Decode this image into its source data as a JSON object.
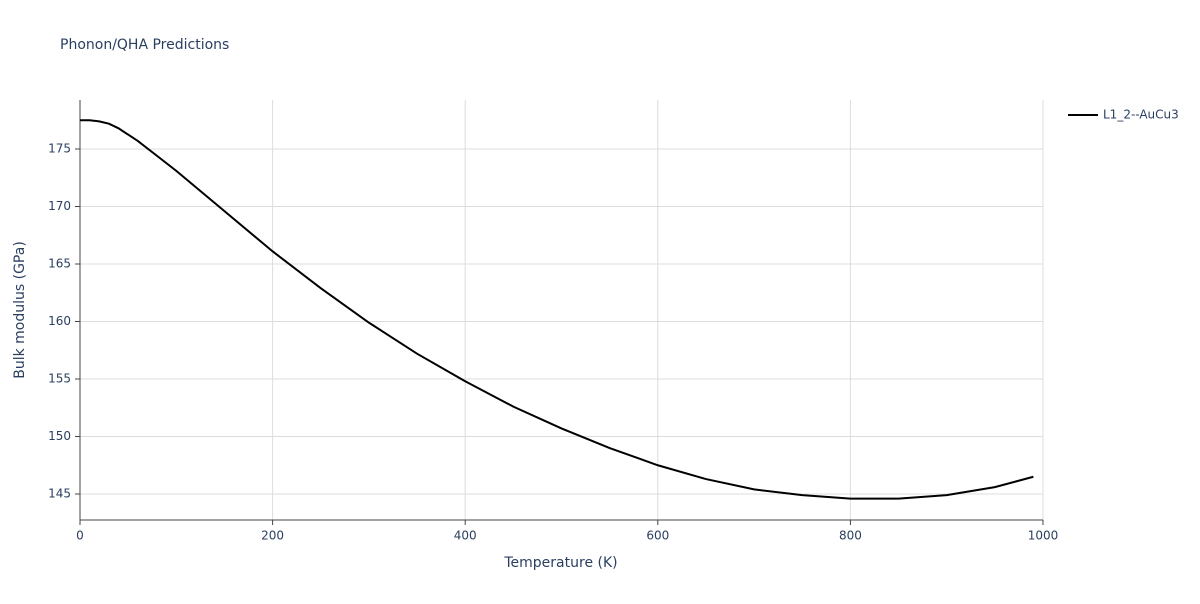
{
  "chart_data": {
    "type": "line",
    "title": "Phonon/QHA Predictions",
    "x_label": "Temperature (K)",
    "y_label": "Bulk modulus (GPa)",
    "x": [
      0,
      10,
      20,
      30,
      40,
      60,
      80,
      100,
      150,
      200,
      250,
      300,
      350,
      400,
      450,
      500,
      550,
      600,
      650,
      700,
      750,
      800,
      850,
      900,
      950,
      990
    ],
    "series": [
      {
        "name": "L1_2--AuCu3",
        "color": "#000000",
        "values": [
          177.5,
          177.5,
          177.4,
          177.2,
          176.8,
          175.7,
          174.4,
          173.1,
          169.6,
          166.1,
          162.9,
          159.9,
          157.2,
          154.8,
          152.6,
          150.7,
          149.0,
          147.5,
          146.3,
          145.4,
          144.9,
          144.6,
          144.6,
          144.9,
          145.6,
          146.5
        ]
      }
    ],
    "xlim": [
      0,
      1000
    ],
    "xticks": [
      0,
      200,
      400,
      600,
      800,
      1000
    ],
    "ylim": [
      142.74,
      179.26
    ],
    "yticks": [
      145,
      150,
      155,
      160,
      165,
      170,
      175
    ],
    "grid": true,
    "legend": "right"
  }
}
